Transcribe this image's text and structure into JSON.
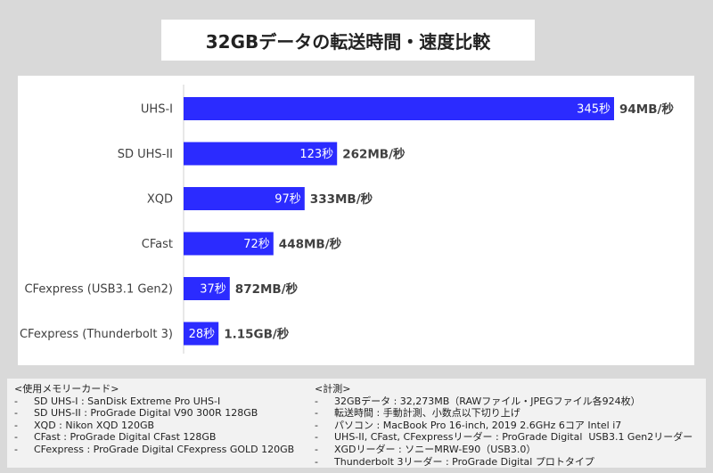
{
  "chart_data": {
    "type": "bar",
    "orientation": "horizontal",
    "title": "32GBデータの転送時間・速度比較",
    "categories": [
      "UHS-I",
      "SD UHS-II",
      "XQD",
      "CFast",
      "CFexpress (USB3.1 Gen2)",
      "CFexpress (Thunderbolt 3)"
    ],
    "values": [
      345,
      123,
      97,
      72,
      37,
      28
    ],
    "value_labels": [
      "345秒",
      "123秒",
      "97秒",
      "72秒",
      "37秒",
      "28秒"
    ],
    "speed_labels": [
      "94MB/秒",
      "262MB/秒",
      "333MB/秒",
      "448MB/秒",
      "872MB/秒",
      "1.15GB/秒"
    ],
    "unit": "秒",
    "xlim": [
      0,
      345
    ],
    "bar_color": "#2b2bff"
  },
  "notes": {
    "cards_heading": "<使用メモリーカード>",
    "cards": [
      "SD UHS-I : SanDisk Extreme Pro UHS-I",
      "SD UHS-II : ProGrade Digital V90 300R 128GB",
      "XQD : Nikon XQD 120GB",
      "CFast : ProGrade Digital CFast 128GB",
      "CFexpress : ProGrade Digital CFexpress GOLD 120GB"
    ],
    "measure_heading": "<計測>",
    "measure": [
      "32GBデータ : 32,273MB（RAWファイル・JPEGファイル各924枚）",
      "転送時間 : 手動計測、小数点以下切り上げ",
      "パソコン : MacBook Pro 16-inch, 2019 2.6GHz 6コア Intel i7",
      "UHS-II, CFast, CFexpressリーダー : ProGrade Digital  USB3.1 Gen2リーダー",
      "XGDリーダー : ソニーMRW-E90（USB3.0）",
      "Thunderbolt 3リーダー : ProGrade Digital プロトタイプ"
    ]
  }
}
